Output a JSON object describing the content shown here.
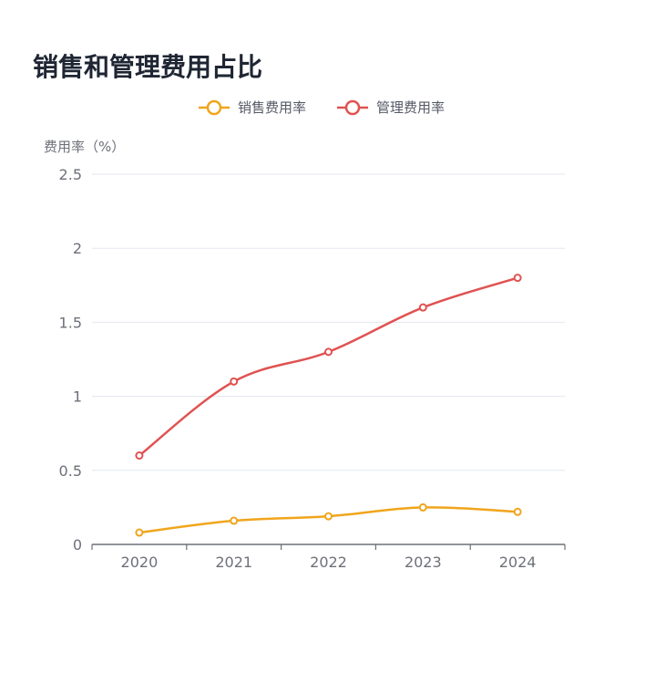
{
  "title": "销售和管理费用占比",
  "chart_data": {
    "type": "line",
    "title": "销售和管理费用占比",
    "xlabel": "",
    "ylabel": "费用率（%）",
    "categories": [
      "2020",
      "2021",
      "2022",
      "2023",
      "2024"
    ],
    "ylim": [
      0,
      2.5
    ],
    "yticks": [
      0,
      0.5,
      1,
      1.5,
      2,
      2.5
    ],
    "ytick_labels": [
      "0",
      "0.5",
      "1",
      "1.5",
      "2",
      "2.5"
    ],
    "grid": true,
    "smooth": true,
    "legend_position": "top-center",
    "series": [
      {
        "name": "销售费用率",
        "color": "#f0a51c",
        "values": [
          0.08,
          0.16,
          0.19,
          0.25,
          0.22
        ]
      },
      {
        "name": "管理费用率",
        "color": "#e05252",
        "values": [
          0.6,
          1.1,
          1.3,
          1.6,
          1.8
        ]
      }
    ]
  }
}
